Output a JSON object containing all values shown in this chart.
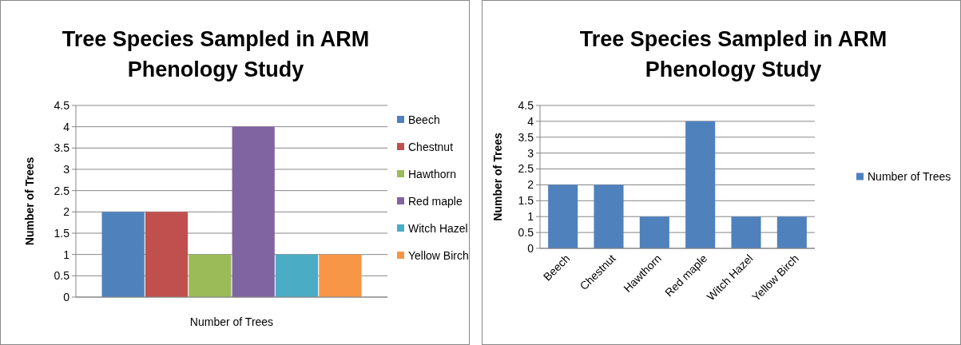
{
  "chart_data": [
    {
      "type": "bar",
      "title": "Tree Species Sampled in ARM Phenology Study",
      "ylabel": "Number of Trees",
      "xlabel": "Number of Trees",
      "categories": [
        null
      ],
      "series": [
        {
          "name": "Beech",
          "color": "#4f81bd",
          "values": [
            2
          ]
        },
        {
          "name": "Chestnut",
          "color": "#c0504d",
          "values": [
            2
          ]
        },
        {
          "name": "Hawthorn",
          "color": "#9bbb59",
          "values": [
            1
          ]
        },
        {
          "name": "Red maple",
          "color": "#8064a2",
          "values": [
            4
          ]
        },
        {
          "name": "Witch Hazel",
          "color": "#4bacc6",
          "values": [
            1
          ]
        },
        {
          "name": "Yellow Birch",
          "color": "#f79646",
          "values": [
            1
          ]
        }
      ],
      "ylim": [
        0,
        4.5
      ],
      "yticks": [
        0,
        0.5,
        1,
        1.5,
        2,
        2.5,
        3,
        3.5,
        4,
        4.5
      ],
      "grid": "y",
      "legend": "right"
    },
    {
      "type": "bar",
      "title": "Tree Species Sampled in ARM Phenology Study",
      "ylabel": "Number of Trees",
      "categories": [
        "Beech",
        "Chestnut",
        "Hawthorn",
        "Red maple",
        "Witch Hazel",
        "Yellow Birch"
      ],
      "series": [
        {
          "name": "Number of Trees",
          "color": "#4f81bd",
          "values": [
            2,
            2,
            1,
            4,
            1,
            1
          ]
        }
      ],
      "ylim": [
        0,
        4.5
      ],
      "yticks": [
        0,
        0.5,
        1,
        1.5,
        2,
        2.5,
        3,
        3.5,
        4,
        4.5
      ],
      "grid": "y",
      "legend": "right"
    }
  ]
}
